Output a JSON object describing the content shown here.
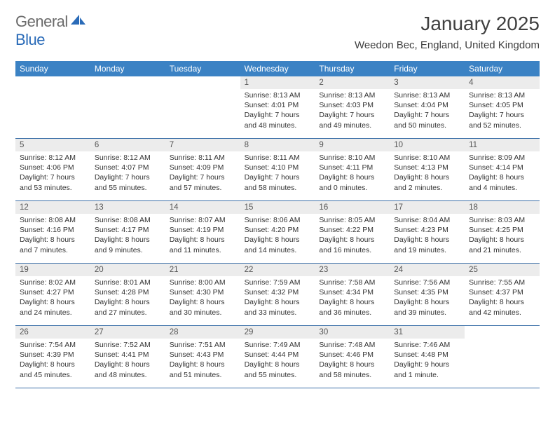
{
  "logo": {
    "general": "General",
    "blue": "Blue"
  },
  "title": "January 2025",
  "location": "Weedon Bec, England, United Kingdom",
  "colors": {
    "header_bg": "#3b82c4",
    "header_text": "#ffffff",
    "daynum_bg": "#ececec",
    "rule": "#3b6fa8",
    "text": "#333333"
  },
  "day_names": [
    "Sunday",
    "Monday",
    "Tuesday",
    "Wednesday",
    "Thursday",
    "Friday",
    "Saturday"
  ],
  "weeks": [
    [
      {
        "n": "",
        "sr": "",
        "ss": "",
        "dl": ""
      },
      {
        "n": "",
        "sr": "",
        "ss": "",
        "dl": ""
      },
      {
        "n": "",
        "sr": "",
        "ss": "",
        "dl": ""
      },
      {
        "n": "1",
        "sr": "Sunrise: 8:13 AM",
        "ss": "Sunset: 4:01 PM",
        "dl": "Daylight: 7 hours and 48 minutes."
      },
      {
        "n": "2",
        "sr": "Sunrise: 8:13 AM",
        "ss": "Sunset: 4:03 PM",
        "dl": "Daylight: 7 hours and 49 minutes."
      },
      {
        "n": "3",
        "sr": "Sunrise: 8:13 AM",
        "ss": "Sunset: 4:04 PM",
        "dl": "Daylight: 7 hours and 50 minutes."
      },
      {
        "n": "4",
        "sr": "Sunrise: 8:13 AM",
        "ss": "Sunset: 4:05 PM",
        "dl": "Daylight: 7 hours and 52 minutes."
      }
    ],
    [
      {
        "n": "5",
        "sr": "Sunrise: 8:12 AM",
        "ss": "Sunset: 4:06 PM",
        "dl": "Daylight: 7 hours and 53 minutes."
      },
      {
        "n": "6",
        "sr": "Sunrise: 8:12 AM",
        "ss": "Sunset: 4:07 PM",
        "dl": "Daylight: 7 hours and 55 minutes."
      },
      {
        "n": "7",
        "sr": "Sunrise: 8:11 AM",
        "ss": "Sunset: 4:09 PM",
        "dl": "Daylight: 7 hours and 57 minutes."
      },
      {
        "n": "8",
        "sr": "Sunrise: 8:11 AM",
        "ss": "Sunset: 4:10 PM",
        "dl": "Daylight: 7 hours and 58 minutes."
      },
      {
        "n": "9",
        "sr": "Sunrise: 8:10 AM",
        "ss": "Sunset: 4:11 PM",
        "dl": "Daylight: 8 hours and 0 minutes."
      },
      {
        "n": "10",
        "sr": "Sunrise: 8:10 AM",
        "ss": "Sunset: 4:13 PM",
        "dl": "Daylight: 8 hours and 2 minutes."
      },
      {
        "n": "11",
        "sr": "Sunrise: 8:09 AM",
        "ss": "Sunset: 4:14 PM",
        "dl": "Daylight: 8 hours and 4 minutes."
      }
    ],
    [
      {
        "n": "12",
        "sr": "Sunrise: 8:08 AM",
        "ss": "Sunset: 4:16 PM",
        "dl": "Daylight: 8 hours and 7 minutes."
      },
      {
        "n": "13",
        "sr": "Sunrise: 8:08 AM",
        "ss": "Sunset: 4:17 PM",
        "dl": "Daylight: 8 hours and 9 minutes."
      },
      {
        "n": "14",
        "sr": "Sunrise: 8:07 AM",
        "ss": "Sunset: 4:19 PM",
        "dl": "Daylight: 8 hours and 11 minutes."
      },
      {
        "n": "15",
        "sr": "Sunrise: 8:06 AM",
        "ss": "Sunset: 4:20 PM",
        "dl": "Daylight: 8 hours and 14 minutes."
      },
      {
        "n": "16",
        "sr": "Sunrise: 8:05 AM",
        "ss": "Sunset: 4:22 PM",
        "dl": "Daylight: 8 hours and 16 minutes."
      },
      {
        "n": "17",
        "sr": "Sunrise: 8:04 AM",
        "ss": "Sunset: 4:23 PM",
        "dl": "Daylight: 8 hours and 19 minutes."
      },
      {
        "n": "18",
        "sr": "Sunrise: 8:03 AM",
        "ss": "Sunset: 4:25 PM",
        "dl": "Daylight: 8 hours and 21 minutes."
      }
    ],
    [
      {
        "n": "19",
        "sr": "Sunrise: 8:02 AM",
        "ss": "Sunset: 4:27 PM",
        "dl": "Daylight: 8 hours and 24 minutes."
      },
      {
        "n": "20",
        "sr": "Sunrise: 8:01 AM",
        "ss": "Sunset: 4:28 PM",
        "dl": "Daylight: 8 hours and 27 minutes."
      },
      {
        "n": "21",
        "sr": "Sunrise: 8:00 AM",
        "ss": "Sunset: 4:30 PM",
        "dl": "Daylight: 8 hours and 30 minutes."
      },
      {
        "n": "22",
        "sr": "Sunrise: 7:59 AM",
        "ss": "Sunset: 4:32 PM",
        "dl": "Daylight: 8 hours and 33 minutes."
      },
      {
        "n": "23",
        "sr": "Sunrise: 7:58 AM",
        "ss": "Sunset: 4:34 PM",
        "dl": "Daylight: 8 hours and 36 minutes."
      },
      {
        "n": "24",
        "sr": "Sunrise: 7:56 AM",
        "ss": "Sunset: 4:35 PM",
        "dl": "Daylight: 8 hours and 39 minutes."
      },
      {
        "n": "25",
        "sr": "Sunrise: 7:55 AM",
        "ss": "Sunset: 4:37 PM",
        "dl": "Daylight: 8 hours and 42 minutes."
      }
    ],
    [
      {
        "n": "26",
        "sr": "Sunrise: 7:54 AM",
        "ss": "Sunset: 4:39 PM",
        "dl": "Daylight: 8 hours and 45 minutes."
      },
      {
        "n": "27",
        "sr": "Sunrise: 7:52 AM",
        "ss": "Sunset: 4:41 PM",
        "dl": "Daylight: 8 hours and 48 minutes."
      },
      {
        "n": "28",
        "sr": "Sunrise: 7:51 AM",
        "ss": "Sunset: 4:43 PM",
        "dl": "Daylight: 8 hours and 51 minutes."
      },
      {
        "n": "29",
        "sr": "Sunrise: 7:49 AM",
        "ss": "Sunset: 4:44 PM",
        "dl": "Daylight: 8 hours and 55 minutes."
      },
      {
        "n": "30",
        "sr": "Sunrise: 7:48 AM",
        "ss": "Sunset: 4:46 PM",
        "dl": "Daylight: 8 hours and 58 minutes."
      },
      {
        "n": "31",
        "sr": "Sunrise: 7:46 AM",
        "ss": "Sunset: 4:48 PM",
        "dl": "Daylight: 9 hours and 1 minute."
      },
      {
        "n": "",
        "sr": "",
        "ss": "",
        "dl": ""
      }
    ]
  ]
}
